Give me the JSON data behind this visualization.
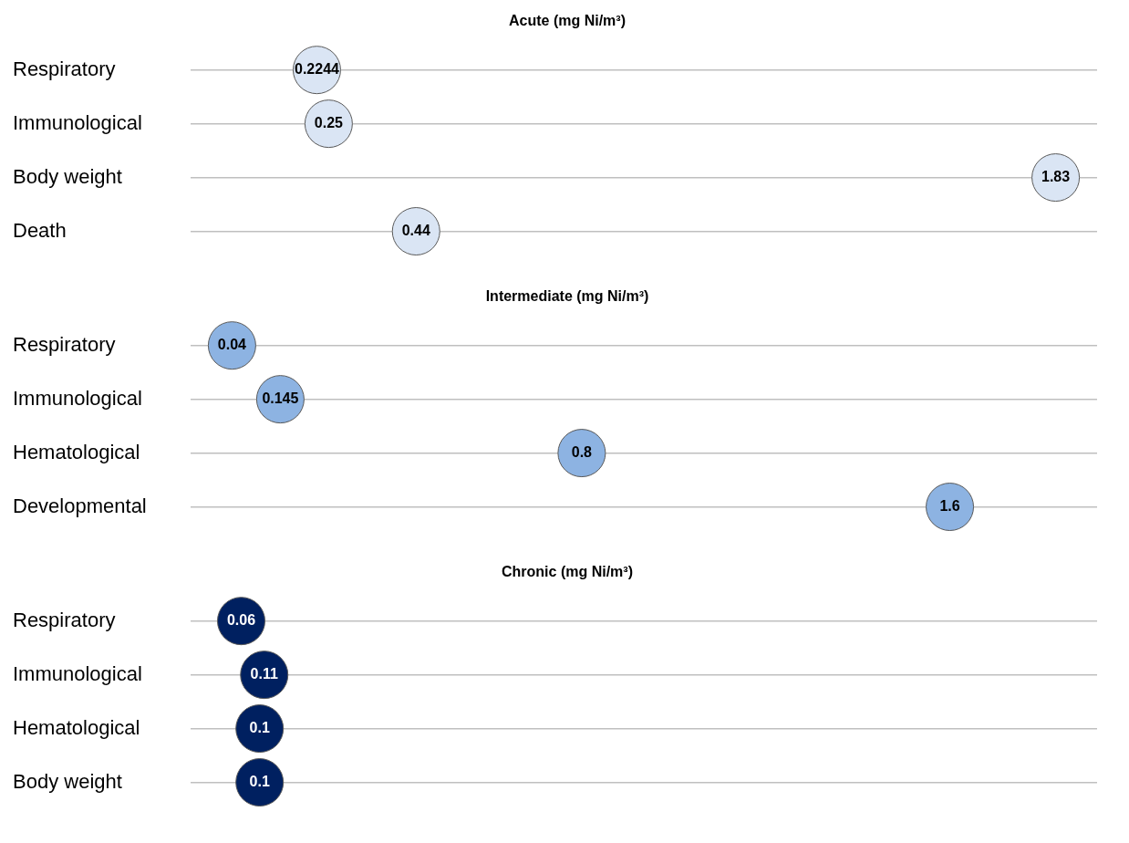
{
  "chart_data": [
    {
      "type": "scatter",
      "title": "Acute (mg Ni/m³)",
      "orientation": "horizontal",
      "categories": [
        "Respiratory",
        "Immunological",
        "Body weight",
        "Death"
      ],
      "values": [
        0.2244,
        0.25,
        1.83,
        0.44
      ],
      "color": "#dae5f4",
      "xlim": [
        -0.05,
        1.92
      ],
      "grid": "y",
      "marker": "circle",
      "data_labels": true,
      "tick_labels": "y",
      "legend": false
    },
    {
      "type": "scatter",
      "title": "Intermediate (mg Ni/m³)",
      "orientation": "horizontal",
      "categories": [
        "Respiratory",
        "Immunological",
        "Hematological",
        "Developmental"
      ],
      "values": [
        0.04,
        0.145,
        0.8,
        1.6
      ],
      "color": "#8db3e2",
      "xlim": [
        -0.05,
        1.92
      ],
      "grid": "y",
      "marker": "circle",
      "data_labels": true,
      "tick_labels": "y",
      "legend": false
    },
    {
      "type": "scatter",
      "title": "Chronic (mg Ni/m³)",
      "orientation": "horizontal",
      "categories": [
        "Respiratory",
        "Immunological",
        "Hematological",
        "Body weight"
      ],
      "values": [
        0.06,
        0.11,
        0.1,
        0.1
      ],
      "color": "#002060",
      "xlim": [
        -0.05,
        1.92
      ],
      "grid": "y",
      "marker": "circle",
      "data_labels": true,
      "tick_labels": "y",
      "legend": false
    }
  ]
}
